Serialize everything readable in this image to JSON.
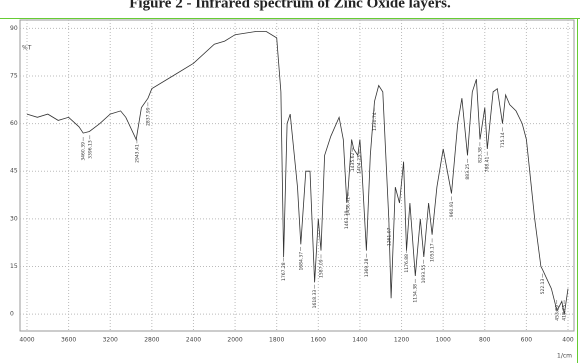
{
  "chart_data": {
    "type": "line",
    "title": "Figure 2 - Infrared spectrum of Zinc Oxide layers.",
    "y_label": "%T",
    "x_label": "1/cm",
    "x": [
      4000,
      3900,
      3800,
      3700,
      3600,
      3500,
      3460,
      3400,
      3300,
      3200,
      3100,
      3050,
      2950,
      2900,
      2837,
      2800,
      2600,
      2400,
      2200,
      2100,
      2000,
      1900,
      1850,
      1800,
      1780,
      1767,
      1750,
      1735,
      1700,
      1684,
      1660,
      1640,
      1618,
      1600,
      1587,
      1570,
      1540,
      1500,
      1480,
      1463,
      1456,
      1440,
      1430,
      1410,
      1400,
      1390,
      1369,
      1350,
      1330,
      1310,
      1290,
      1261,
      1250,
      1230,
      1210,
      1190,
      1176,
      1160,
      1134,
      1110,
      1093,
      1070,
      1053,
      1030,
      1000,
      960,
      930,
      910,
      883,
      860,
      840,
      823,
      800,
      788,
      760,
      740,
      715,
      700,
      680,
      650,
      620,
      600,
      560,
      530,
      522,
      480,
      453,
      430,
      418,
      400
    ],
    "values": [
      63,
      62,
      63,
      61,
      62,
      59,
      57,
      57.5,
      60,
      63,
      64,
      62,
      55,
      65,
      68,
      71,
      75,
      79,
      85,
      86,
      88,
      89,
      89,
      87,
      70,
      18,
      60,
      63,
      40,
      22,
      45,
      45,
      10,
      30,
      20,
      50,
      56,
      62,
      55,
      35,
      40,
      55,
      52,
      50,
      55,
      45,
      20,
      50,
      67,
      72,
      70,
      30,
      5,
      40,
      35,
      48,
      20,
      35,
      12,
      30,
      18,
      35,
      25,
      40,
      52,
      38,
      60,
      68,
      50,
      70,
      74,
      55,
      65,
      52,
      70,
      71,
      60,
      69,
      66,
      64,
      60,
      55,
      30,
      15,
      14,
      8,
      1,
      4,
      0,
      8
    ],
    "color": "#333333",
    "xlim": [
      4000,
      400
    ],
    "x_scale_change_at": 2000,
    "xticks": [
      4000,
      3600,
      3200,
      2800,
      2400,
      2000,
      1800,
      1600,
      1400,
      1200,
      1000,
      800,
      600,
      400
    ],
    "ylim": [
      -5,
      92
    ],
    "yticks": [
      0,
      15,
      30,
      45,
      60,
      75,
      90
    ],
    "grid": true,
    "annotations": [
      3460.39,
      3396.13,
      2943.41,
      2837.99,
      1767.28,
      1684.37,
      1618.33,
      1587.09,
      1463.39,
      1456.41,
      1435.62,
      1404.23,
      1369.28,
      1330.74,
      1261.07,
      1176.88,
      1134.38,
      1093.55,
      1053.17,
      960.91,
      883.25,
      823.38,
      788.41,
      715.14,
      522.13,
      453.89,
      418.73
    ]
  }
}
